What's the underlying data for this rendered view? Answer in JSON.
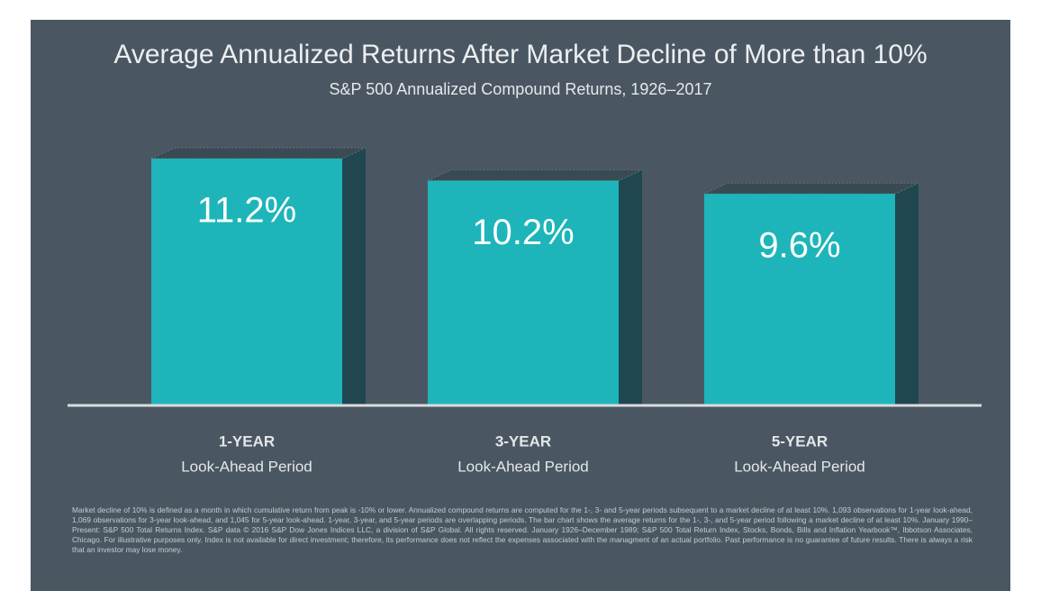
{
  "chart_data": {
    "type": "bar3d",
    "title": "Average Annualized Returns After Market Decline of More than 10%",
    "subtitle": "S&P 500 Annualized Compound Returns, 1926–2017",
    "categories": [
      "1-YEAR",
      "3-YEAR",
      "5-YEAR"
    ],
    "category_sublabels": [
      "Look-Ahead Period",
      "Look-Ahead Period",
      "Look-Ahead Period"
    ],
    "values": [
      11.2,
      10.2,
      9.6
    ],
    "value_labels": [
      "11.2%",
      "10.2%",
      "9.6%"
    ],
    "color": "#1db5b9",
    "footnote": "Market decline of 10% is defined as a month in which cumulative return from peak is -10% or lower. Annualized compound returns are computed for the 1-, 3- and 5-year periods subsequent to a market decline of at least 10%. 1,093 observations for 1-year look-ahead, 1,069 observations for 3-year look-ahead, and 1,045 for 5-year look-ahead. 1-year, 3-year, and 5-year periods are overlapping periods. The bar chart shows the average returns for the 1-, 3-, and 5-year period following a market decline of at least 10%. January 1990–Present: S&P 500 Total Returns Index. S&P data © 2016 S&P Dow Jones Indices LLC, a division of S&P Global. All rights reserved. January 1926–December 1989; S&P 500 Total Return Index, Stocks, Bonds, Bills and Inflation Yearbook™, Ibbotson Associates, Chicago. For illustrative purposes only. Index is not available for direct investment; therefore, its performance does not reflect the expenses associated with the managment of an actual portfolio. Past performance is no guarantee of future results. There is always a risk that an investor may lose money."
  }
}
